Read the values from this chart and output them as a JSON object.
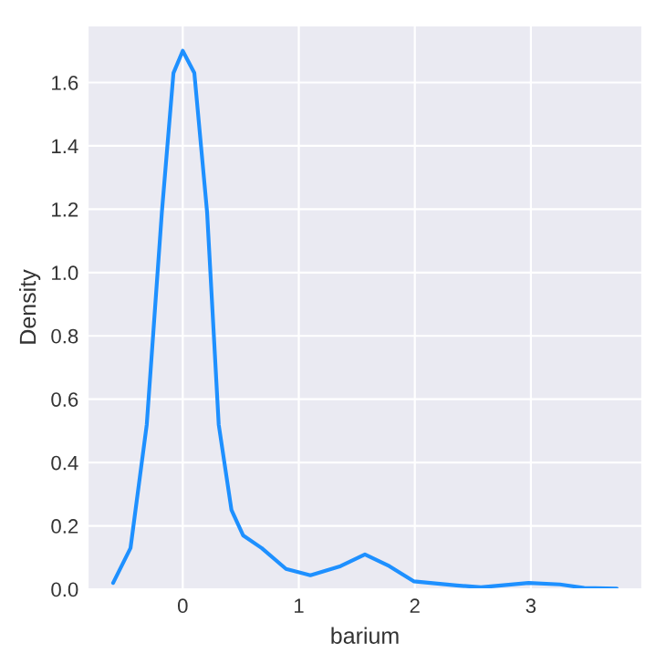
{
  "chart_data": {
    "type": "line",
    "xlabel": "barium",
    "ylabel": "Density",
    "series": [
      {
        "color": "#1e90ff",
        "x": [
          -0.6,
          -0.45,
          -0.31,
          -0.18,
          -0.08,
          0,
          0.1,
          0.21,
          0.31,
          0.42,
          0.52,
          0.68,
          0.89,
          1.1,
          1.36,
          1.57,
          1.78,
          1.99,
          2.36,
          2.57,
          2.98,
          3.25,
          3.46,
          3.74
        ],
        "values": [
          0.02,
          0.13,
          0.52,
          1.19,
          1.63,
          1.7,
          1.63,
          1.19,
          0.52,
          0.25,
          0.17,
          0.13,
          0.064,
          0.044,
          0.073,
          0.11,
          0.073,
          0.025,
          0.012,
          0.006,
          0.02,
          0.015,
          0.004,
          0.002
        ]
      }
    ],
    "xlim": [
      -0.82,
      3.96
    ],
    "ylim": [
      0,
      1.78
    ],
    "xticks": [
      0,
      1,
      2,
      3
    ],
    "yticks": [
      {
        "value": 0,
        "label": "0.0"
      },
      {
        "value": 0.2,
        "label": "0.2"
      },
      {
        "value": 0.4,
        "label": "0.4"
      },
      {
        "value": 0.6,
        "label": "0.6"
      },
      {
        "value": 0.8,
        "label": "0.8"
      },
      {
        "value": 1.0,
        "label": "1.0"
      },
      {
        "value": 1.2,
        "label": "1.2"
      },
      {
        "value": 1.4,
        "label": "1.4"
      },
      {
        "value": 1.6,
        "label": "1.6"
      }
    ],
    "grid": true,
    "marker": "none",
    "line_style": "solid"
  }
}
